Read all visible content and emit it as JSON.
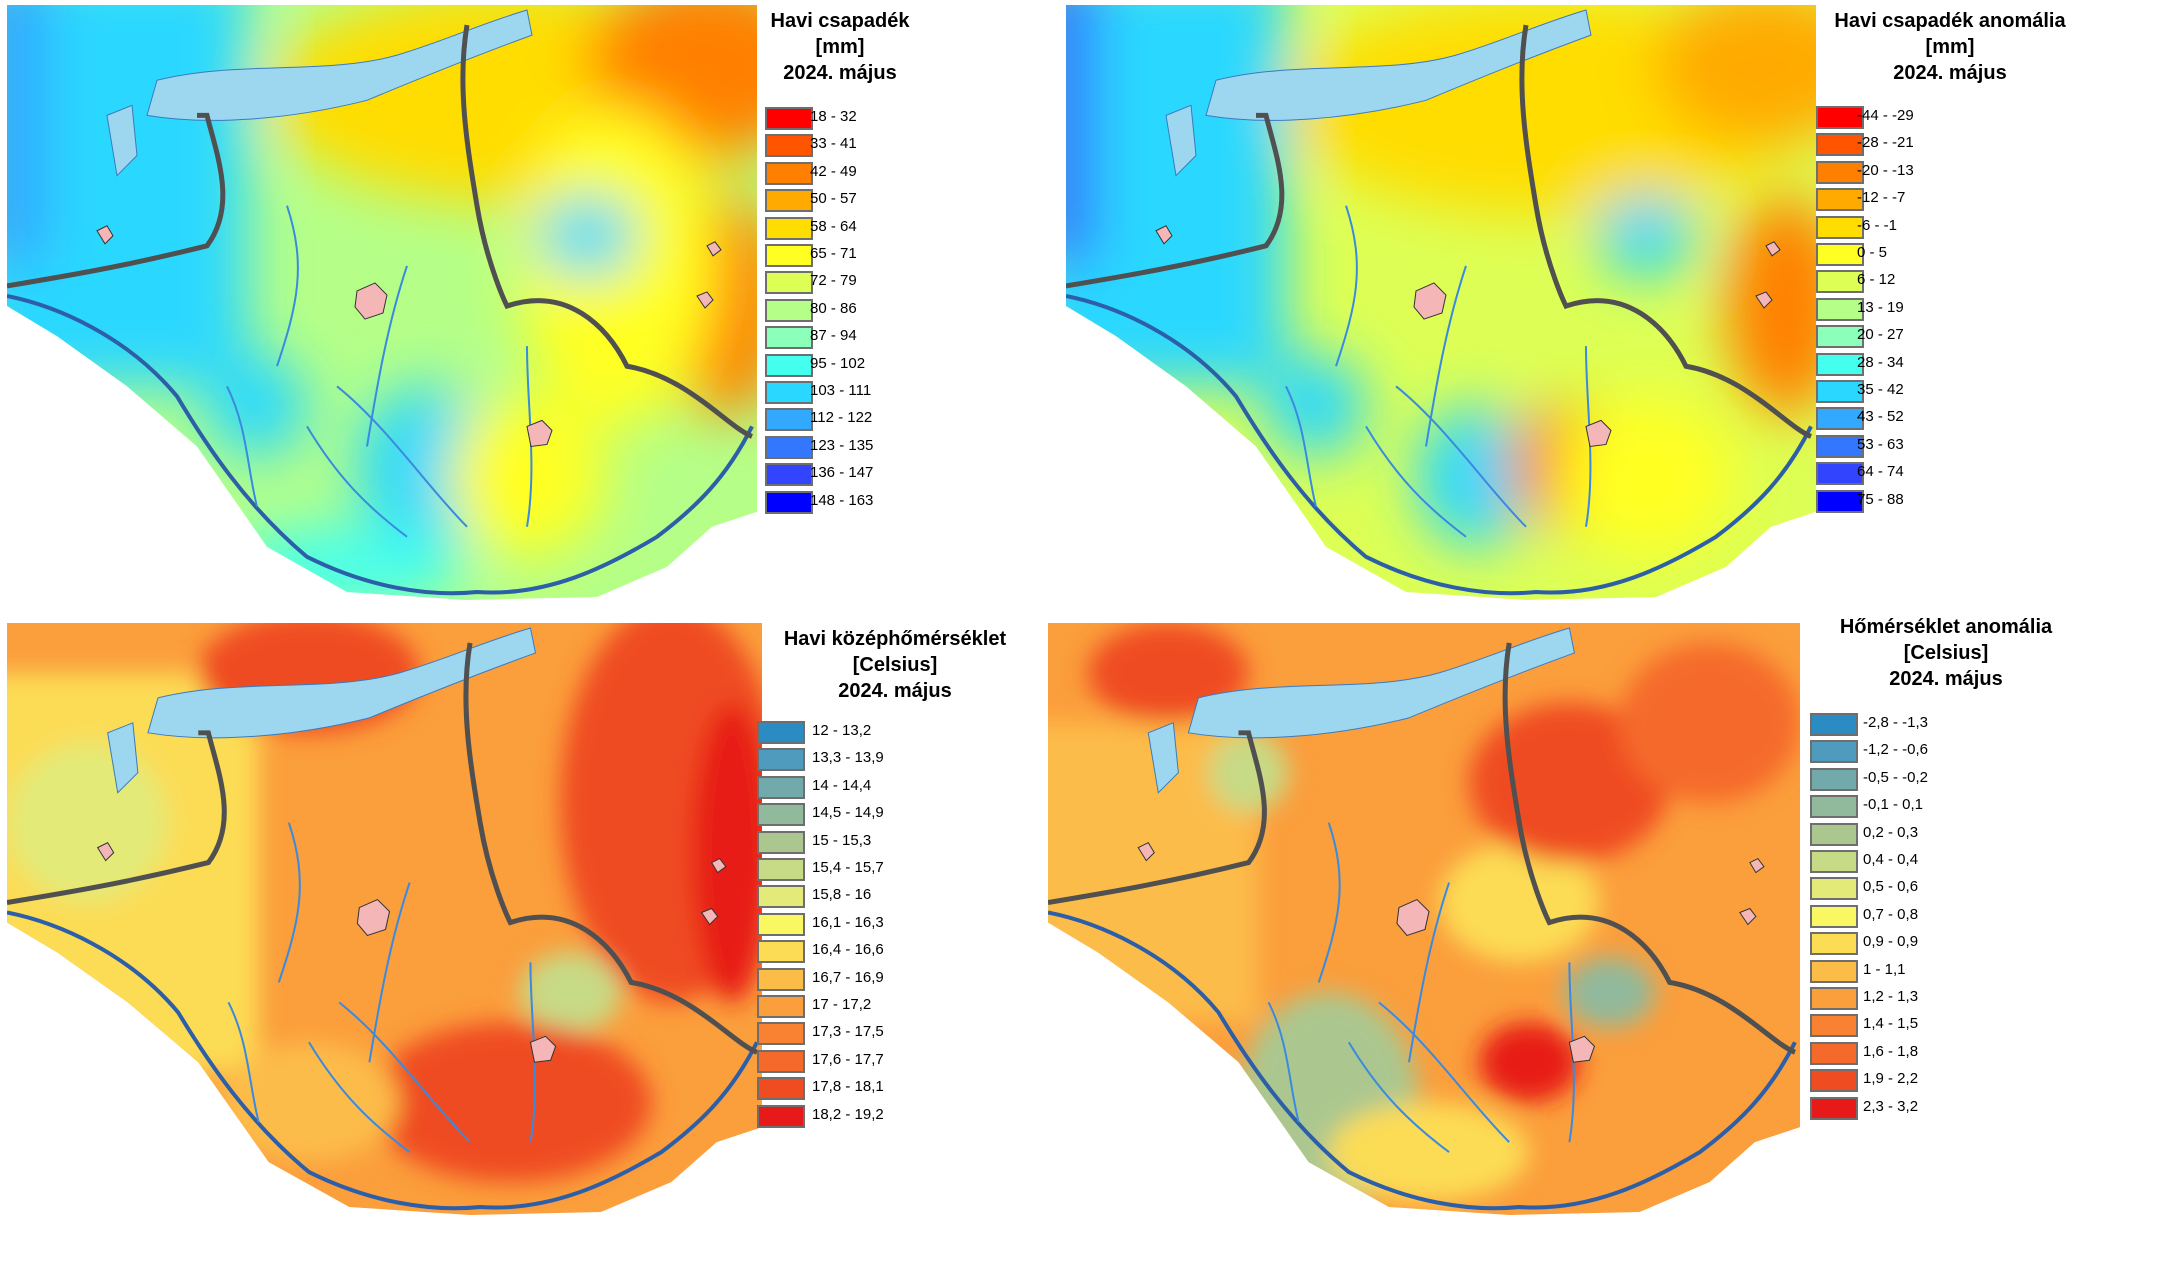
{
  "maps": [
    {
      "id": "precip",
      "title": [
        "Havi csapadék",
        "[mm]",
        "2024. május"
      ],
      "classes": [
        {
          "label": "18 - 32",
          "color": "#ff0000"
        },
        {
          "label": "33 - 41",
          "color": "#ff5500"
        },
        {
          "label": "42 - 49",
          "color": "#ff8000"
        },
        {
          "label": "50 - 57",
          "color": "#ffaa00"
        },
        {
          "label": "58 - 64",
          "color": "#ffdd00"
        },
        {
          "label": "65 - 71",
          "color": "#ffff22"
        },
        {
          "label": "72 - 79",
          "color": "#ddff55"
        },
        {
          "label": "80 - 86",
          "color": "#b5ff88"
        },
        {
          "label": "87 - 94",
          "color": "#8cffbb"
        },
        {
          "label": "95 - 102",
          "color": "#44ffee"
        },
        {
          "label": "103 - 111",
          "color": "#2ad8ff"
        },
        {
          "label": "112 - 122",
          "color": "#33a8ff"
        },
        {
          "label": "123 - 135",
          "color": "#3377ff"
        },
        {
          "label": "136 - 147",
          "color": "#3344ff"
        },
        {
          "label": "148 - 163",
          "color": "#0000ff"
        }
      ]
    },
    {
      "id": "precip-anomaly",
      "title": [
        "Havi csapadék anomália",
        "[mm]",
        "2024. május"
      ],
      "classes": [
        {
          "label": "-44 - -29",
          "color": "#ff0000"
        },
        {
          "label": "-28 - -21",
          "color": "#ff5500"
        },
        {
          "label": "-20 - -13",
          "color": "#ff8000"
        },
        {
          "label": "-12 - -7",
          "color": "#ffaa00"
        },
        {
          "label": "-6 - -1",
          "color": "#ffdd00"
        },
        {
          "label": "0 - 5",
          "color": "#ffff22"
        },
        {
          "label": "6 - 12",
          "color": "#ddff55"
        },
        {
          "label": "13 - 19",
          "color": "#b5ff88"
        },
        {
          "label": "20 - 27",
          "color": "#8cffbb"
        },
        {
          "label": "28 - 34",
          "color": "#44ffee"
        },
        {
          "label": "35 - 42",
          "color": "#2ad8ff"
        },
        {
          "label": "43 - 52",
          "color": "#33a8ff"
        },
        {
          "label": "53 - 63",
          "color": "#3377ff"
        },
        {
          "label": "64 - 74",
          "color": "#3344ff"
        },
        {
          "label": "75 - 88",
          "color": "#0000ff"
        }
      ]
    },
    {
      "id": "temperature",
      "title": [
        "Havi középhőmérséklet",
        "[Celsius]",
        "2024. május"
      ],
      "classes": [
        {
          "label": "12 - 13,2",
          "color": "#2b8cc4"
        },
        {
          "label": "13,3 - 13,9",
          "color": "#4f9bbd"
        },
        {
          "label": "14 - 14,4",
          "color": "#72a9ab"
        },
        {
          "label": "14,5 - 14,9",
          "color": "#91b99c"
        },
        {
          "label": "15 - 15,3",
          "color": "#abc78f"
        },
        {
          "label": "15,4 - 15,7",
          "color": "#c7da86"
        },
        {
          "label": "15,8 - 16",
          "color": "#e3ea78"
        },
        {
          "label": "16,1 - 16,3",
          "color": "#faf862"
        },
        {
          "label": "16,4 - 16,6",
          "color": "#fcdc55"
        },
        {
          "label": "16,7 - 16,9",
          "color": "#fcbc48"
        },
        {
          "label": "17 - 17,2",
          "color": "#fb9e3c"
        },
        {
          "label": "17,3 - 17,5",
          "color": "#f98232"
        },
        {
          "label": "17,6 - 17,7",
          "color": "#f56a2a"
        },
        {
          "label": "17,8 - 18,1",
          "color": "#ef4c22"
        },
        {
          "label": "18,2 - 19,2",
          "color": "#e71a19"
        }
      ]
    },
    {
      "id": "temperature-anomaly",
      "title": [
        "Hőmérséklet anomália",
        "[Celsius]",
        "2024. május"
      ],
      "classes": [
        {
          "label": "-2,8 - -1,3",
          "color": "#2b8cc4"
        },
        {
          "label": "-1,2 - -0,6",
          "color": "#4f9bbd"
        },
        {
          "label": "-0,5 - -0,2",
          "color": "#72a9ab"
        },
        {
          "label": "-0,1 - 0,1",
          "color": "#91b99c"
        },
        {
          "label": "0,2 - 0,3",
          "color": "#abc78f"
        },
        {
          "label": "0,4 - 0,4",
          "color": "#c7da86"
        },
        {
          "label": "0,5 - 0,6",
          "color": "#e3ea78"
        },
        {
          "label": "0,7 - 0,8",
          "color": "#faf862"
        },
        {
          "label": "0,9 - 0,9",
          "color": "#fcdc55"
        },
        {
          "label": "1 - 1,1",
          "color": "#fcbc48"
        },
        {
          "label": "1,2 - 1,3",
          "color": "#fb9e3c"
        },
        {
          "label": "1,4 - 1,5",
          "color": "#f98232"
        },
        {
          "label": "1,6 - 1,8",
          "color": "#f56a2a"
        },
        {
          "label": "1,9 - 2,2",
          "color": "#ef4c22"
        },
        {
          "label": "2,3 - 3,2",
          "color": "#e71a19"
        }
      ]
    }
  ]
}
